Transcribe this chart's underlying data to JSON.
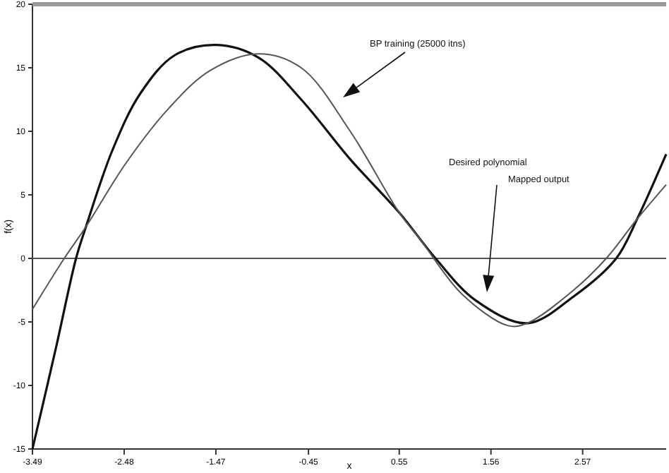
{
  "chart_data": {
    "type": "line",
    "xlabel": "x",
    "ylabel": "f(x)",
    "xlim": [
      -3.49,
      3.49
    ],
    "ylim": [
      -15,
      20
    ],
    "xticks": [
      -3.49,
      -2.48,
      -1.47,
      -0.45,
      0.55,
      1.56,
      2.57
    ],
    "yticks": [
      -15,
      -10,
      -5,
      0,
      5,
      10,
      15,
      20
    ],
    "grid": false,
    "marker": "none",
    "line_style": "solid",
    "ref_lines": [
      {
        "axis": "y",
        "value": 0,
        "color": "#555555"
      }
    ],
    "annotations": [
      "BP  training (25000 itns)",
      "Desired polynomial",
      "Mapped output"
    ],
    "series": [
      {
        "color": "#111111",
        "x": [
          -3.49,
          -3.23,
          -3.01,
          -2.9,
          -2.61,
          -2.3,
          -1.92,
          -1.46,
          -1.0,
          -0.53,
          0.01,
          0.55,
          0.95,
          1.39,
          1.96,
          2.47,
          2.94,
          3.17,
          3.49
        ],
        "values": [
          -15,
          -7,
          0,
          2.5,
          8.5,
          13,
          16,
          16.8,
          15.8,
          12.5,
          7.8,
          3.6,
          0,
          -3.3,
          -5.1,
          -3,
          0,
          3.1,
          8.2
        ]
      },
      {
        "color": "#555555",
        "x": [
          -3.49,
          -3.14,
          -2.9,
          -2.46,
          -1.99,
          -1.53,
          -1.0,
          -0.53,
          0.01,
          0.55,
          0.78,
          1.24,
          1.75,
          1.96,
          2.47,
          2.83,
          3.17,
          3.49
        ],
        "values": [
          -4,
          0,
          2.5,
          7.5,
          11.8,
          14.8,
          16.1,
          15,
          10,
          3.6,
          1.5,
          -2.8,
          -5.3,
          -5.1,
          -2.5,
          0,
          3.1,
          5.8
        ]
      }
    ]
  }
}
